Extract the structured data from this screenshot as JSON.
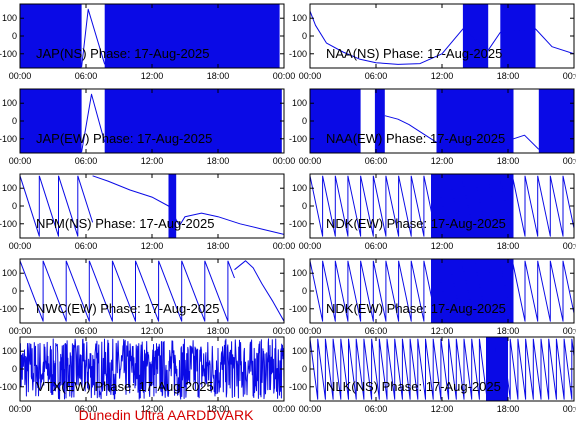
{
  "footer": "Dunedin Ultra AARDDVARK",
  "colors": {
    "trace": "#0a0ae6",
    "footer": "#d40000",
    "axis": "#000000"
  },
  "chart_data": [
    {
      "type": "line",
      "title": "JAP(NS) Phase: 17-Aug-2025",
      "xlim": [
        "00:00",
        "24:00"
      ],
      "ylim": [
        -180,
        180
      ],
      "xticks": [
        "00:00",
        "06:00",
        "12:00",
        "18:00",
        "00:00"
      ],
      "yticks": [
        100,
        0,
        -100
      ],
      "pattern": "dense-partial",
      "dense_ranges": [
        [
          0,
          5.6
        ],
        [
          7.7,
          23.6
        ]
      ],
      "x": [
        5.6,
        6.2,
        7.7
      ],
      "y": [
        -175,
        150,
        -160
      ]
    },
    {
      "type": "line",
      "title": "NAA(NS) Phase: 17-Aug-2025",
      "xlim": [
        "00:00",
        "24:00"
      ],
      "ylim": [
        -180,
        180
      ],
      "xticks": [
        "00:00",
        "06:00",
        "12:00",
        "18:00",
        "00:00"
      ],
      "yticks": [
        100,
        0,
        -100
      ],
      "pattern": "mixed",
      "dense_ranges": [
        [
          13.9,
          16.2
        ],
        [
          17.3,
          20.5
        ]
      ],
      "x": [
        0,
        0.5,
        1.5,
        3,
        4.5,
        6,
        8,
        10,
        12,
        13.9,
        16.2,
        17.3,
        20.5,
        22,
        24
      ],
      "y": [
        140,
        60,
        -40,
        -90,
        -130,
        -150,
        -160,
        -155,
        -100,
        40,
        -80,
        20,
        40,
        -60,
        -100
      ]
    },
    {
      "type": "line",
      "title": "JAP(EW) Phase: 17-Aug-2025",
      "xlim": [
        "00:00",
        "24:00"
      ],
      "ylim": [
        -180,
        180
      ],
      "xticks": [
        "00:00",
        "06:00",
        "12:00",
        "18:00",
        "00:00"
      ],
      "yticks": [
        100,
        0,
        -100
      ],
      "pattern": "dense-partial",
      "dense_ranges": [
        [
          0,
          5.6
        ],
        [
          7.7,
          23.8
        ]
      ],
      "x": [
        5.6,
        6.5,
        7.7
      ],
      "y": [
        -175,
        150,
        -120
      ]
    },
    {
      "type": "line",
      "title": "NAA(EW) Phase: 17-Aug-2025",
      "xlim": [
        "00:00",
        "24:00"
      ],
      "ylim": [
        -180,
        180
      ],
      "xticks": [
        "00:00",
        "06:00",
        "12:00",
        "18:00",
        "00:00"
      ],
      "yticks": [
        100,
        0,
        -100
      ],
      "pattern": "mixed",
      "dense_ranges": [
        [
          0,
          4.6
        ],
        [
          5.9,
          6.8
        ],
        [
          11.5,
          18.5
        ],
        [
          20.8,
          24
        ]
      ],
      "x": [
        6.8,
        8,
        9,
        10,
        11.5,
        18.5,
        19.5,
        20.8
      ],
      "y": [
        30,
        10,
        -20,
        -60,
        -120,
        -100,
        -80,
        -160
      ]
    },
    {
      "type": "line",
      "title": "NPM(NS) Phase: 17-Aug-2025",
      "xlim": [
        "00:00",
        "24:00"
      ],
      "ylim": [
        -180,
        180
      ],
      "xticks": [
        "00:00",
        "06:00",
        "12:00",
        "18:00",
        "00:00"
      ],
      "yticks": [
        100,
        0,
        -100
      ],
      "pattern": "sawtooth-then-smooth",
      "saw_period": 1.75,
      "saw_end": 6.6,
      "dense_ranges": [
        [
          13.5,
          14.2
        ]
      ],
      "x": [
        6.6,
        8,
        10,
        12,
        13.5,
        14.5,
        15,
        16.5,
        18,
        20,
        22,
        24
      ],
      "y": [
        170,
        140,
        90,
        50,
        0,
        -110,
        -60,
        -40,
        -60,
        -100,
        -130,
        -160
      ]
    },
    {
      "type": "line",
      "title": "NDK(EW) Phase: 17-Aug-2025",
      "xlim": [
        "00:00",
        "24:00"
      ],
      "ylim": [
        -180,
        180
      ],
      "xticks": [
        "00:00",
        "06:00",
        "12:00",
        "18:00",
        "00:00"
      ],
      "yticks": [
        100,
        0,
        -100
      ],
      "pattern": "sawtooth-dense",
      "saw_period": 1.15,
      "dense_ranges": [
        [
          11,
          18.5
        ]
      ]
    },
    {
      "type": "line",
      "title": "NWC(EW) Phase: 17-Aug-2025",
      "xlim": [
        "00:00",
        "24:00"
      ],
      "ylim": [
        -180,
        180
      ],
      "xticks": [
        "00:00",
        "06:00",
        "12:00",
        "18:00",
        "00:00"
      ],
      "yticks": [
        100,
        0,
        -100
      ],
      "pattern": "sawtooth",
      "saw_period": 2.1,
      "saw_end": 19.5,
      "x": [
        19.5,
        20.5,
        21.2,
        22,
        23,
        24
      ],
      "y": [
        120,
        170,
        130,
        40,
        -60,
        -170
      ]
    },
    {
      "type": "line",
      "title": "NDK(EW) Phase: 17-Aug-2025",
      "xlim": [
        "00:00",
        "24:00"
      ],
      "ylim": [
        -180,
        180
      ],
      "xticks": [
        "00:00",
        "06:00",
        "12:00",
        "18:00",
        "00:00"
      ],
      "yticks": [
        100,
        0,
        -100
      ],
      "pattern": "sawtooth-dense",
      "saw_period": 1.15,
      "dense_ranges": [
        [
          11,
          18.5
        ]
      ]
    },
    {
      "type": "line",
      "title": "VTX(EW) Phase: 17-Aug-2025",
      "xlim": [
        "00:00",
        "24:00"
      ],
      "ylim": [
        -180,
        180
      ],
      "xticks": [
        "00:00",
        "06:00",
        "12:00",
        "18:00",
        "00:00"
      ],
      "yticks": [
        100,
        0,
        -100
      ],
      "pattern": "noise",
      "dense_ranges": [
        [
          0,
          24
        ]
      ]
    },
    {
      "type": "line",
      "title": "NLK(NS) Phase: 17-Aug-2025",
      "xlim": [
        "00:00",
        "24:00"
      ],
      "ylim": [
        -180,
        180
      ],
      "xticks": [
        "00:00",
        "06:00",
        "12:00",
        "18:00",
        "00:00"
      ],
      "yticks": [
        100,
        0,
        -100
      ],
      "pattern": "sawtooth-dense",
      "saw_period": 0.7,
      "dense_ranges": [
        [
          16,
          18
        ]
      ]
    }
  ]
}
